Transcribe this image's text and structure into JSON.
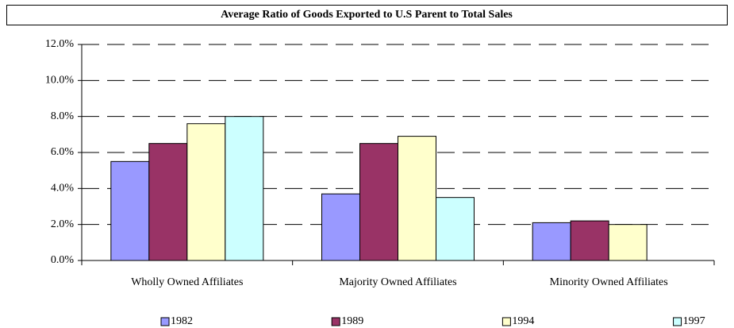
{
  "chart_data": {
    "type": "bar",
    "title": "Average Ratio of Goods Exported to U.S Parent to Total Sales",
    "categories": [
      "Wholly Owned Affiliates",
      "Majority Owned Affiliates",
      "Minority Owned Affiliates"
    ],
    "series": [
      {
        "name": "1982",
        "color": "#9999ff",
        "values": [
          5.5,
          3.7,
          2.1
        ]
      },
      {
        "name": "1989",
        "color": "#993366",
        "values": [
          6.5,
          6.5,
          2.2
        ]
      },
      {
        "name": "1994",
        "color": "#ffffcc",
        "values": [
          7.6,
          6.9,
          2.0
        ]
      },
      {
        "name": "1997",
        "color": "#ccffff",
        "values": [
          8.0,
          3.5,
          null
        ]
      }
    ],
    "ylim": [
      0,
      12
    ],
    "yticks": [
      {
        "value": 0,
        "label": "0.0%"
      },
      {
        "value": 2,
        "label": "2.0%"
      },
      {
        "value": 4,
        "label": "4.0%"
      },
      {
        "value": 6,
        "label": "6.0%"
      },
      {
        "value": 8,
        "label": "8.0%"
      },
      {
        "value": 10,
        "label": "10.0%"
      },
      {
        "value": 12,
        "label": "12.0%"
      }
    ],
    "grid": true,
    "legend": "bottom"
  }
}
